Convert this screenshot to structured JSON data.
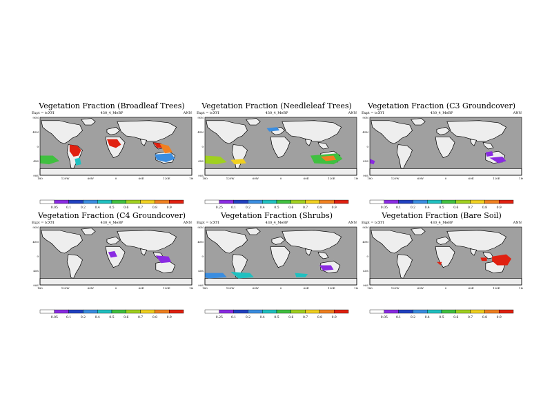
{
  "page": {
    "background": "#ffffff"
  },
  "panels": [
    {
      "title": "Vegetation Fraction (Broadleaf Trees)",
      "expt": "Expt = tcXYI",
      "case": "430_4_MeBP",
      "season": "ANN",
      "colorbar_labels": [
        "0.05",
        "0.1",
        "0.2",
        "0.4",
        "0.5",
        "0.6",
        "0.7",
        "0.8",
        "0.9"
      ],
      "xticks": [
        "180",
        "120W",
        "60W",
        "0",
        "60E",
        "120E",
        "180"
      ],
      "yticks": [
        "90N",
        "45N",
        "0",
        "45S",
        "90S"
      ]
    },
    {
      "title": "Vegetation Fraction (Needleleaf Trees)",
      "expt": "Expt = tcXYI",
      "case": "430_4_MeBP",
      "season": "ANN",
      "colorbar_labels": [
        "0.25",
        "0.1",
        "0.2",
        "0.4",
        "0.5",
        "0.6",
        "0.7",
        "0.8",
        "0.9"
      ],
      "xticks": [
        "180",
        "120W",
        "60W",
        "0",
        "60E",
        "120E",
        "180"
      ],
      "yticks": [
        "90N",
        "45N",
        "0",
        "45S",
        "90S"
      ]
    },
    {
      "title": "Vegetation Fraction (C3 Groundcover)",
      "expt": "Expt = tcXYI",
      "case": "430_4_MeBP",
      "season": "ANN",
      "colorbar_labels": [
        "0.05",
        "0.1",
        "0.2",
        "0.4",
        "0.5",
        "0.6",
        "0.7",
        "0.8",
        "0.9"
      ],
      "xticks": [
        "180",
        "120W",
        "60W",
        "0",
        "60E",
        "120E",
        "180"
      ],
      "yticks": [
        "90N",
        "45N",
        "0",
        "45S",
        "90S"
      ]
    },
    {
      "title": "Vegetation Fraction (C4 Groundcover)",
      "expt": "Expt = tcXYI",
      "case": "430_4_MeBP",
      "season": "ANN",
      "colorbar_labels": [
        "0.05",
        "0.1",
        "0.2",
        "0.4",
        "0.5",
        "0.6",
        "0.7",
        "0.8",
        "0.9"
      ],
      "xticks": [
        "180",
        "120W",
        "60W",
        "0",
        "60E",
        "120E",
        "180"
      ],
      "yticks": [
        "90N",
        "45N",
        "0",
        "45S",
        "90S"
      ]
    },
    {
      "title": "Vegetation Fraction (Shrubs)",
      "expt": "Expt = tcXYI",
      "case": "430_4_MeBP",
      "season": "ANN",
      "colorbar_labels": [
        "0.25",
        "0.1",
        "0.2",
        "0.4",
        "0.5",
        "0.6",
        "0.7",
        "0.8",
        "0.9"
      ],
      "xticks": [
        "180",
        "120W",
        "60W",
        "0",
        "60E",
        "120E",
        "180"
      ],
      "yticks": [
        "90N",
        "45N",
        "0",
        "45S",
        "90S"
      ]
    },
    {
      "title": "Vegetation Fraction (Bare Soil)",
      "expt": "Expt = tcXYI",
      "case": "430_4_MeBP",
      "season": "ANN",
      "colorbar_labels": [
        "0.05",
        "0.1",
        "0.2",
        "0.4",
        "0.5",
        "0.6",
        "0.7",
        "0.8",
        "0.9"
      ],
      "xticks": [
        "180",
        "120W",
        "60W",
        "0",
        "60E",
        "120E",
        "180"
      ],
      "yticks": [
        "90N",
        "45N",
        "0",
        "45S",
        "90S"
      ]
    }
  ],
  "colors": {
    "ocean": "#a0a0a0",
    "land_empty": "#eeeeee",
    "colorbar": [
      "#ffffff",
      "#8a2be2",
      "#2040c0",
      "#3a8de0",
      "#20c0c0",
      "#40c040",
      "#a0d020",
      "#f0d020",
      "#f08020",
      "#e02010"
    ]
  }
}
